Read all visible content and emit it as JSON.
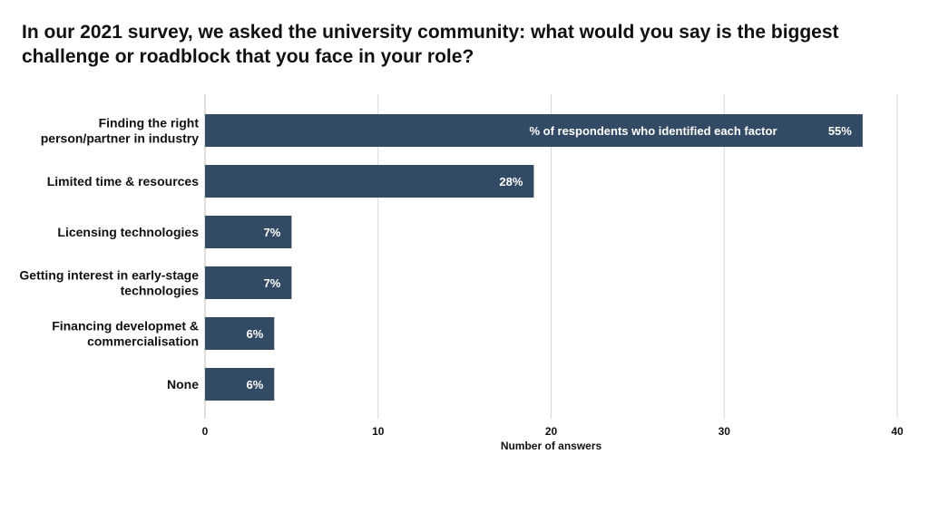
{
  "chart_data": {
    "type": "bar",
    "orientation": "horizontal",
    "title": "In our 2021 survey, we asked the university community: what would you say is the biggest challenge or roadblock that you face in your role?",
    "categories": [
      [
        "Finding the right",
        "person/partner in industry"
      ],
      [
        "Limited time & resources"
      ],
      [
        "Licensing technologies"
      ],
      [
        "Getting interest in early-stage",
        "technologies"
      ],
      [
        "Financing developmet &",
        "commercialisation"
      ],
      [
        "None"
      ]
    ],
    "series": [
      {
        "name": "% of respondents who identified each factor",
        "values": [
          38,
          19,
          5,
          5,
          4,
          4
        ],
        "data_labels": [
          "55%",
          "28%",
          "7%",
          "7%",
          "6%",
          "6%"
        ]
      }
    ],
    "xlabel": "Number of answers",
    "ylabel": "",
    "xlim": [
      0,
      40
    ],
    "xticks": [
      0,
      10,
      20,
      30,
      40
    ],
    "grid": true,
    "bar_color": "#324a63",
    "grid_color": "#d9d9d9"
  }
}
